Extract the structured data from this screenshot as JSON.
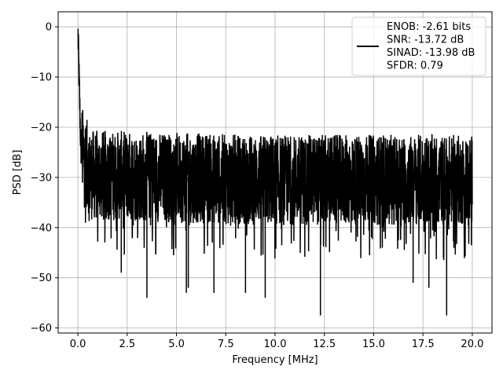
{
  "chart_data": {
    "type": "line",
    "xlabel": "Frequency [MHz]",
    "ylabel": "PSD [dB]",
    "xlim": [
      -1.0,
      21.0
    ],
    "ylim": [
      -61.0,
      3.0
    ],
    "x_ticks": [
      0.0,
      2.5,
      5.0,
      7.5,
      10.0,
      12.5,
      15.0,
      17.5,
      20.0
    ],
    "x_tick_labels": [
      "0.0",
      "2.5",
      "5.0",
      "7.5",
      "10.0",
      "12.5",
      "15.0",
      "17.5",
      "20.0"
    ],
    "y_ticks": [
      0,
      -10,
      -20,
      -30,
      -40,
      -50,
      -60
    ],
    "y_tick_labels": [
      "0",
      "−10",
      "−20",
      "−30",
      "−40",
      "−50",
      "−60"
    ],
    "grid": true,
    "legend_position": "top-right",
    "legend_lines": [
      "ENOB: -2.61 bits",
      "SNR: -13.72 dB",
      "SINAD: -13.98 dB",
      "SFDR: 0.79"
    ],
    "series_color": "#000000",
    "series": [
      {
        "x": [
          0.0,
          0.02,
          0.04,
          0.06,
          0.08,
          0.1,
          0.12,
          0.14,
          0.16,
          0.2,
          0.25,
          0.3,
          0.4,
          0.5,
          0.6,
          0.8,
          1.0,
          1.2,
          1.5,
          2.0,
          2.2,
          2.5,
          3.0,
          3.5,
          4.0,
          4.5,
          5.0,
          5.5,
          5.6,
          6.0,
          6.5,
          6.9,
          7.5,
          8.0,
          8.5,
          9.0,
          9.5,
          10.0,
          10.5,
          11.0,
          11.5,
          12.0,
          12.3,
          12.5,
          13.0,
          13.5,
          14.0,
          14.5,
          15.0,
          15.5,
          16.0,
          16.5,
          17.0,
          17.5,
          17.8,
          18.0,
          18.5,
          18.7,
          19.0,
          19.5,
          20.0
        ],
        "y": [
          -0.5,
          -3,
          -8,
          -12,
          -16,
          -19,
          -22,
          -24,
          -25,
          -27,
          -28,
          -29,
          -30,
          -30,
          -30.5,
          -31,
          -31,
          -31,
          -32,
          -33,
          -49,
          -32,
          -33,
          -54,
          -34,
          -33,
          -34,
          -53,
          -52,
          -34,
          -34,
          -53,
          -34,
          -34,
          -53,
          -33,
          -54,
          -33,
          -34,
          -33,
          -34,
          -33,
          -57.5,
          -34,
          -33,
          -34,
          -33,
          -35,
          -33,
          -34,
          -35,
          -34,
          -51,
          -34,
          -52,
          -34,
          -35,
          -57.5,
          -34,
          -34,
          -34
        ]
      }
    ]
  }
}
